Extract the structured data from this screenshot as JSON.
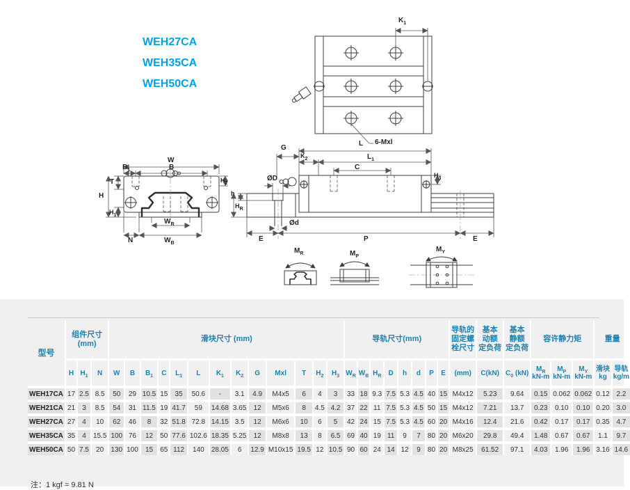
{
  "page": {
    "models": [
      "WEH27CA",
      "WEH35CA",
      "WEH50CA"
    ],
    "note": "注：1 kgf = 9.81 N"
  },
  "drawings": {
    "top_view": {
      "k1": "K_{1}",
      "bolt_count": "6-Mxl"
    },
    "front_view": {
      "w": "W",
      "b1": "B_{1}",
      "b": "B",
      "h2": "H_{2}",
      "t": "T",
      "h": "H",
      "h1": "H_{1}",
      "wr": "W_{R}",
      "wb": "W_{B}",
      "n": "N"
    },
    "side_view": {
      "g": "G",
      "l": "L",
      "k2": "K_{2}",
      "l1": "L_{1}",
      "c": "C",
      "h3": "H_{3}",
      "dia_D": "ØD",
      "dia_d": "Ød",
      "h": "h",
      "hr": "H_{R}",
      "e_left": "E",
      "p": "P",
      "e_right": "E"
    },
    "moments": {
      "mr": "M_{R}",
      "mp": "M_{P}",
      "my": "M_{Y}"
    }
  },
  "table": {
    "groups": [
      "型号",
      "组件尺寸\n(mm)",
      "滑块尺寸 (mm)",
      "导轨尺寸(mm)",
      "导轨的\n固定螺\n栓尺寸",
      "基本\n动额\n定负荷",
      "基本\n静额\n定负荷",
      "容许静力矩",
      "重量"
    ],
    "columns": [
      "H",
      "H_{1}",
      "N",
      "W",
      "B",
      "B_{1}",
      "C",
      "L_{1}",
      "L",
      "K_{1}",
      "K_{2}",
      "G",
      "Mxl",
      "T",
      "H_{2}",
      "H_{3}",
      "W_{R}",
      "W_{B}",
      "H_{R}",
      "D",
      "h",
      "d",
      "P",
      "E",
      "(mm)",
      "C(kN)",
      "C_{0} (kN)",
      "M_{R}\nkN-m",
      "M_{P}\nkN-m",
      "M_{Y}\nkN-m",
      "滑块\nkg",
      "导轨\nkg/m"
    ],
    "rows": [
      [
        "WEH17CA",
        "17",
        "2.5",
        "8.5",
        "50",
        "29",
        "10.5",
        "15",
        "35",
        "50.6",
        "-",
        "3.1",
        "4.9",
        "M4x5",
        "6",
        "4",
        "3",
        "33",
        "18",
        "9.3",
        "7.5",
        "5.3",
        "4.5",
        "40",
        "15",
        "M4x12",
        "5.23",
        "9.64",
        "0.15",
        "0.062",
        "0.062",
        "0.12",
        "2.2"
      ],
      [
        "WEH21CA",
        "21",
        "3",
        "8.5",
        "54",
        "31",
        "11.5",
        "19",
        "41.7",
        "59",
        "14.68",
        "3.65",
        "12",
        "M5x6",
        "8",
        "4.5",
        "4.2",
        "37",
        "22",
        "11",
        "7.5",
        "5.3",
        "4.5",
        "50",
        "15",
        "M4x12",
        "7.21",
        "13.7",
        "0.23",
        "0.10",
        "0.10",
        "0.20",
        "3.0"
      ],
      [
        "WEH27CA",
        "27",
        "4",
        "10",
        "62",
        "46",
        "8",
        "32",
        "51.8",
        "72.8",
        "14.15",
        "3.5",
        "12",
        "M6x6",
        "10",
        "6",
        "5",
        "42",
        "24",
        "15",
        "7.5",
        "5.3",
        "4.5",
        "60",
        "20",
        "M4x16",
        "12.4",
        "21.6",
        "0.42",
        "0.17",
        "0.17",
        "0.35",
        "4.7"
      ],
      [
        "WEH35CA",
        "35",
        "4",
        "15.5",
        "100",
        "76",
        "12",
        "50",
        "77.6",
        "102.6",
        "18.35",
        "5.25",
        "12",
        "M8x8",
        "13",
        "8",
        "6.5",
        "69",
        "40",
        "19",
        "11",
        "9",
        "7",
        "80",
        "20",
        "M6x20",
        "29.8",
        "49.4",
        "1.48",
        "0.67",
        "0.67",
        "1.1",
        "9.7"
      ],
      [
        "WEH50CA",
        "50",
        "7.5",
        "20",
        "130",
        "100",
        "15",
        "65",
        "112",
        "140",
        "28.05",
        "6",
        "12.9",
        "M10x15",
        "19.5",
        "12",
        "10.5",
        "90",
        "60",
        "24",
        "14",
        "12",
        "9",
        "80",
        "20",
        "M8x25",
        "61.52",
        "97.1",
        "4.03",
        "1.96",
        "1.96",
        "3.16",
        "14.6"
      ]
    ]
  }
}
